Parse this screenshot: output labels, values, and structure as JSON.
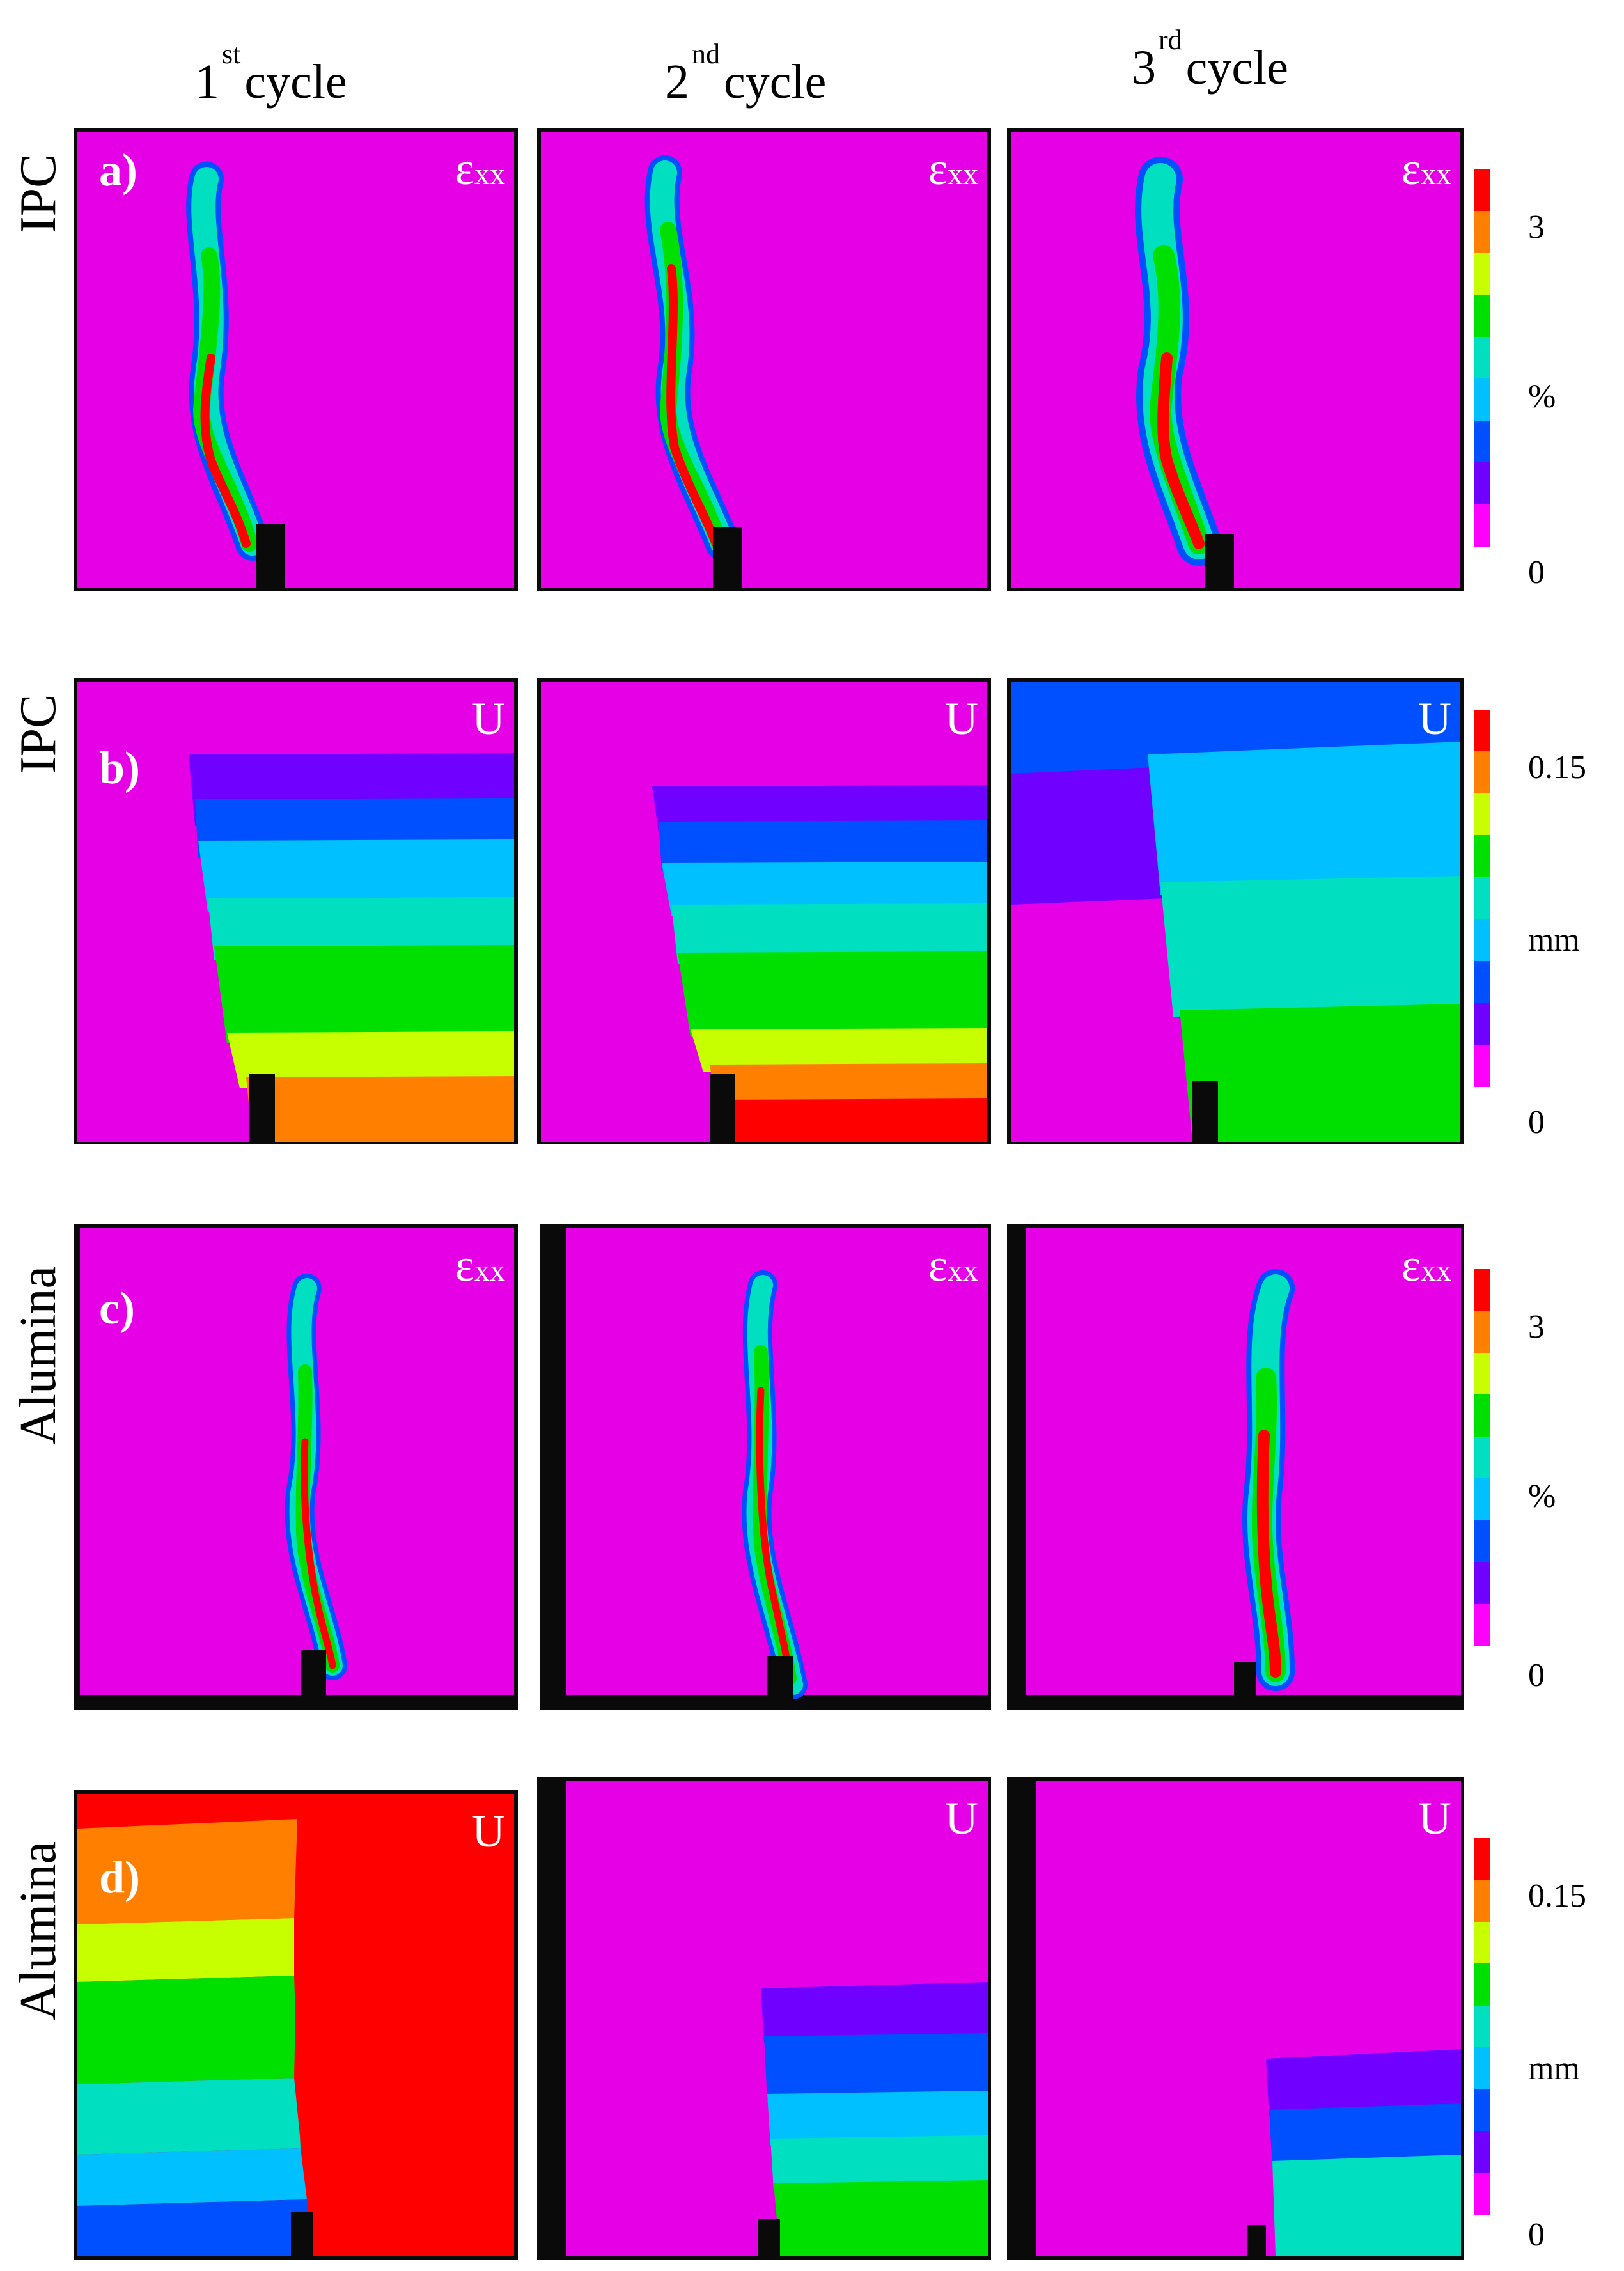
{
  "columns": [
    {
      "number": "1",
      "suffix": "st",
      "word": "cycle"
    },
    {
      "number": "2",
      "suffix": "nd",
      "word": "cycle"
    },
    {
      "number": "3",
      "suffix": "rd",
      "word": "cycle"
    }
  ],
  "rows": [
    {
      "material": "IPC",
      "tag": "a)",
      "field": "ε",
      "field_sub": "xx",
      "unit": "%",
      "top_value": "3",
      "bottom_value": "0",
      "kind": "strain"
    },
    {
      "material": "IPC",
      "tag": "b)",
      "field": "U",
      "field_sub": "",
      "unit": "mm",
      "top_value": "0.15",
      "bottom_value": "0",
      "kind": "displacement"
    },
    {
      "material": "Alumina",
      "tag": "c)",
      "field": "ε",
      "field_sub": "xx",
      "unit": "%",
      "top_value": "3",
      "bottom_value": "0",
      "kind": "strain"
    },
    {
      "material": "Alumina",
      "tag": "d)",
      "field": "U",
      "field_sub": "",
      "unit": "mm",
      "top_value": "0.15",
      "bottom_value": "0",
      "kind": "displacement"
    }
  ],
  "colormap": [
    "#ff0000",
    "#ff8000",
    "#c8ff00",
    "#00e000",
    "#00e0c0",
    "#00c0ff",
    "#0050ff",
    "#7000ff",
    "#ff00ff"
  ],
  "colors": {
    "background_field": "#e600e6",
    "mask": "#0a0a0a"
  }
}
